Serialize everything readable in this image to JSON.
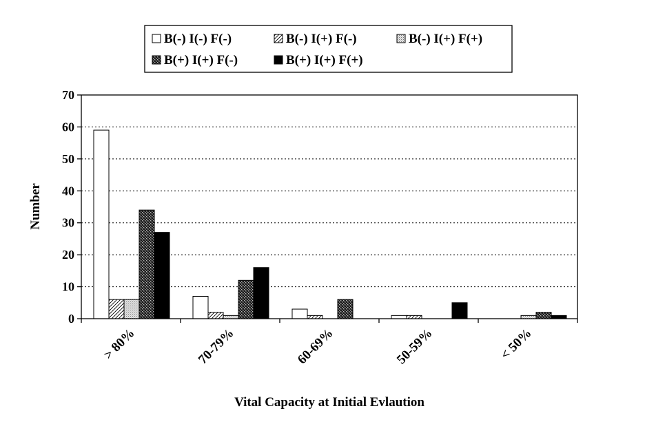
{
  "chart_data": {
    "type": "bar",
    "title": "",
    "xlabel": "Vital Capacity at Initial Evlaution",
    "ylabel": "Number",
    "ylim": [
      0,
      70
    ],
    "yticks": [
      0,
      10,
      20,
      30,
      40,
      50,
      60,
      70
    ],
    "grid": "horizontal dotted",
    "legend_position": "top-center",
    "categories": [
      "> 80%",
      "70-79%",
      "60-69%",
      "50-59%",
      "< 50%"
    ],
    "series": [
      {
        "name": "B(-) I(-) F(-)",
        "pattern": "white",
        "values": [
          59,
          7,
          3,
          1,
          0
        ]
      },
      {
        "name": "B(-) I(+) F(-)",
        "pattern": "hatch",
        "values": [
          6,
          2,
          1,
          1,
          0
        ]
      },
      {
        "name": "B(-) I(+) F(+)",
        "pattern": "light-dots",
        "values": [
          6,
          1,
          0,
          0,
          1
        ]
      },
      {
        "name": "B(+) I(+) F(-)",
        "pattern": "dark-check",
        "values": [
          34,
          12,
          6,
          0,
          2
        ]
      },
      {
        "name": "B(+) I(+) F(+)",
        "pattern": "black",
        "values": [
          27,
          16,
          0,
          5,
          1
        ]
      }
    ]
  }
}
